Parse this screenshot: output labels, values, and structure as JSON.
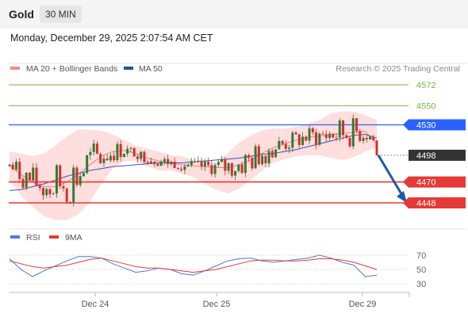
{
  "header": {
    "symbol": "Gold",
    "timeframe": "30 MIN"
  },
  "datetime": "Monday, December 29, 2025 2:07:54 AM CET",
  "legend": {
    "ma": "MA 20 + Bollinger Bands",
    "ma50": "MA 50",
    "rsi": "RSI",
    "nine_ma": "9MA"
  },
  "source": "Research © 2025 Trading Central",
  "colors": {
    "up": "#2e7d32",
    "down": "#d32f2f",
    "bands": "#ffd6d6",
    "ma20": "#f08080",
    "ma50": "#3f51b5",
    "resistance": "#2962ff",
    "support": "#e53935",
    "green_level": "#7cb342",
    "price": "#333333",
    "arrow": "#2159a8",
    "rsi": "#4a7bd6"
  },
  "chart_data": [
    {
      "type": "candlestick",
      "x_ticks": [
        "Dec 24",
        "Dec 25",
        "Dec 29"
      ],
      "ylim": [
        4430,
        4585
      ],
      "levels": [
        {
          "value": 4572,
          "label": "4572",
          "kind": "target"
        },
        {
          "value": 4550,
          "label": "4550",
          "kind": "target"
        },
        {
          "value": 4530,
          "label": "4530",
          "kind": "resistance"
        },
        {
          "value": 4498,
          "label": "4498",
          "kind": "last-price"
        },
        {
          "value": 4470,
          "label": "4470",
          "kind": "support"
        },
        {
          "value": 4448,
          "label": "4448",
          "kind": "support"
        }
      ],
      "series": [
        {
          "name": "MA 20 + Bollinger Bands",
          "values": [
            4487,
            4478,
            4470,
            4465,
            4465,
            4470,
            4478,
            4488,
            4497,
            4502,
            4503,
            4500,
            4495,
            4492,
            4490,
            4488,
            4487,
            4486,
            4485,
            4485,
            4488,
            4493,
            4500,
            4506,
            4510,
            4514,
            4517,
            4518,
            4520,
            4521,
            4522,
            4523,
            4510
          ]
        },
        {
          "name": "MA 50",
          "values": [
            4461,
            4462,
            4465,
            4468,
            4472,
            4476,
            4479,
            4482,
            4484,
            4486,
            4487,
            4488,
            4489,
            4490,
            4490,
            4490,
            4491,
            4492,
            4493,
            4494,
            4495,
            4497,
            4499,
            4500,
            4502,
            4504,
            4507,
            4510,
            4513,
            4516,
            4519,
            4520,
            4516
          ]
        }
      ],
      "bollinger_upper": [
        4502,
        4500,
        4497,
        4500,
        4508,
        4518,
        4525,
        4525,
        4524,
        4520,
        4514,
        4508,
        4505,
        4502,
        4498,
        4497,
        4493,
        4488,
        4491,
        4500,
        4511,
        4519,
        4524,
        4526,
        4526,
        4528,
        4531,
        4535,
        4542,
        4544,
        4544,
        4540,
        4535
      ],
      "bollinger_lower": [
        4472,
        4456,
        4444,
        4434,
        4430,
        4430,
        4436,
        4449,
        4468,
        4484,
        4492,
        4492,
        4486,
        4482,
        4482,
        4479,
        4475,
        4468,
        4462,
        4458,
        4463,
        4472,
        4482,
        4490,
        4494,
        4497,
        4498,
        4498,
        4495,
        4493,
        4496,
        4502,
        4506
      ],
      "projection_arrow": {
        "from": 4498,
        "to": 4448
      }
    },
    {
      "type": "line",
      "y_ticks": [
        "70",
        "50",
        "30"
      ],
      "ylim": [
        20,
        80
      ],
      "series": [
        {
          "name": "RSI",
          "values": [
            65,
            50,
            40,
            48,
            55,
            62,
            68,
            68,
            66,
            58,
            52,
            46,
            48,
            52,
            50,
            44,
            42,
            48,
            55,
            62,
            65,
            66,
            62,
            60,
            62,
            64,
            66,
            70,
            66,
            60,
            56,
            40,
            42
          ]
        },
        {
          "name": "9MA",
          "values": [
            62,
            58,
            54,
            52,
            54,
            56,
            60,
            64,
            66,
            62,
            58,
            54,
            52,
            52,
            50,
            48,
            46,
            48,
            50,
            54,
            58,
            62,
            63,
            63,
            62,
            62,
            63,
            65,
            65,
            63,
            60,
            55,
            50
          ]
        }
      ]
    }
  ]
}
